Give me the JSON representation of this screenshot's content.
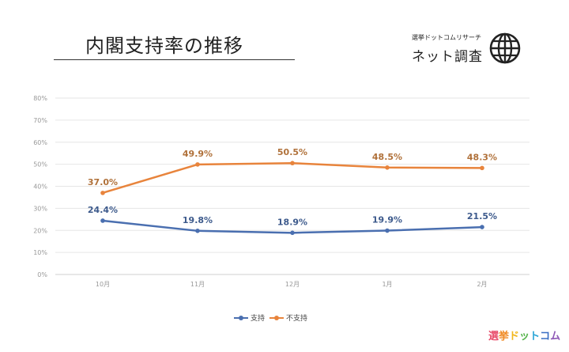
{
  "header": {
    "title": "内閣支持率の推移",
    "brand_sub": "選挙ドットコムリサーチ",
    "brand_main": "ネット調査",
    "brand_icon": "globe-icon"
  },
  "logo": {
    "chars": [
      "選",
      "挙",
      "ド",
      "ッ",
      "ト",
      "コ",
      "ム"
    ],
    "colors": [
      "#e84d6b",
      "#f08a24",
      "#f3b71d",
      "#54b34a",
      "#2aa5d6",
      "#3b6fc4",
      "#8e58b6"
    ]
  },
  "colors": {
    "support": "#4a6fb0",
    "nonsupport": "#e8843c",
    "nonsupport_label": "#b0713a",
    "support_label": "#3d5a8c"
  },
  "chart_data": {
    "type": "line",
    "title": "内閣支持率の推移",
    "categories": [
      "10月",
      "11月",
      "12月",
      "1月",
      "2月"
    ],
    "series": [
      {
        "name": "支持",
        "values": [
          24.4,
          19.8,
          18.9,
          19.9,
          21.5
        ],
        "labels": [
          "24.4%",
          "19.8%",
          "18.9%",
          "19.9%",
          "21.5%"
        ]
      },
      {
        "name": "不支持",
        "values": [
          37.0,
          49.9,
          50.5,
          48.5,
          48.3
        ],
        "labels": [
          "37.0%",
          "49.9%",
          "50.5%",
          "48.5%",
          "48.3%"
        ]
      }
    ],
    "yticks": [
      "0%",
      "10%",
      "20%",
      "30%",
      "40%",
      "50%",
      "60%",
      "70%",
      "80%"
    ],
    "ylim": [
      0,
      80
    ],
    "grid": true,
    "legend": "bottom",
    "xlabel": "",
    "ylabel": ""
  },
  "legend": {
    "items": [
      "支持",
      "不支持"
    ]
  }
}
